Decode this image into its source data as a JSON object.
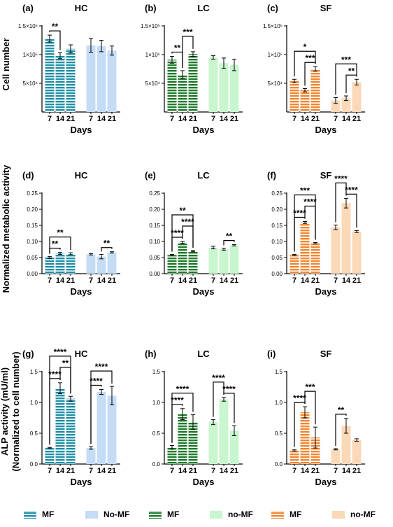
{
  "figure": {
    "ylabels": {
      "row0": "Cell number",
      "row1": "Normalized metabolic activity",
      "row2": "ALP activity (mU/ml)",
      "row2b": "(Normalized to cell number)"
    },
    "legend": [
      {
        "label": "MF",
        "color": "#1f8fa6",
        "pattern": "stripe"
      },
      {
        "label": "No-MF",
        "color": "#c5dcf5",
        "pattern": "solid"
      },
      {
        "label": "MF",
        "color": "#1e7a2a",
        "pattern": "stripe"
      },
      {
        "label": "no-MF",
        "color": "#c9f5cf",
        "pattern": "solid"
      },
      {
        "label": "MF",
        "color": "#f2852f",
        "pattern": "stripe"
      },
      {
        "label": "no-MF",
        "color": "#fbd9b8",
        "pattern": "solid"
      }
    ]
  },
  "chart_data": [
    {
      "type": "bar",
      "panel": "(a)",
      "title": "HC",
      "xlabel": "Days",
      "ylim": [
        0,
        150000
      ],
      "yticks": [
        {
          "v": 50000,
          "t": "5×10⁴"
        },
        {
          "v": 100000,
          "t": "1×10⁵"
        },
        {
          "v": 150000,
          "t": "1.5×10⁵"
        }
      ],
      "categories": [
        "7",
        "14",
        "21"
      ],
      "series": [
        {
          "name": "MF",
          "values": [
            128000,
            98000,
            110000
          ],
          "errors": [
            6000,
            5000,
            7000
          ]
        },
        {
          "name": "No-MF",
          "values": [
            116000,
            115000,
            107000
          ],
          "errors": [
            12000,
            10000,
            8000
          ]
        }
      ],
      "annotations": [
        {
          "series": 0,
          "from": 0,
          "to": 1,
          "label": "**",
          "level": 1
        }
      ]
    },
    {
      "type": "bar",
      "panel": "(b)",
      "title": "LC",
      "xlabel": "Days",
      "ylim": [
        0,
        150000
      ],
      "yticks": [
        {
          "v": 50000,
          "t": "5×10⁴"
        },
        {
          "v": 100000,
          "t": "1×10⁵"
        },
        {
          "v": 150000,
          "t": "1.5×10⁵"
        }
      ],
      "categories": [
        "7",
        "14",
        "21"
      ],
      "series": [
        {
          "name": "MF",
          "values": [
            91000,
            65000,
            101000
          ],
          "errors": [
            6000,
            7000,
            4000
          ]
        },
        {
          "name": "no-MF",
          "values": [
            95000,
            85000,
            82000
          ],
          "errors": [
            3000,
            9000,
            10000
          ]
        }
      ],
      "annotations": [
        {
          "series": 0,
          "from": 0,
          "to": 1,
          "label": "**",
          "level": 1
        },
        {
          "series": 0,
          "from": 1,
          "to": 2,
          "label": "***",
          "level": 2
        }
      ]
    },
    {
      "type": "bar",
      "panel": "(c)",
      "title": "SF",
      "xlabel": "Days",
      "ylim": [
        0,
        150000
      ],
      "yticks": [
        {
          "v": 50000,
          "t": "5×10⁴"
        },
        {
          "v": 100000,
          "t": "1×10⁵"
        },
        {
          "v": 150000,
          "t": "1.5×10⁵"
        }
      ],
      "categories": [
        "7",
        "14",
        "21"
      ],
      "series": [
        {
          "name": "MF",
          "values": [
            54000,
            38000,
            75000
          ],
          "errors": [
            3000,
            3000,
            4000
          ]
        },
        {
          "name": "no-MF",
          "values": [
            20000,
            24000,
            52000
          ],
          "errors": [
            5000,
            4000,
            5000
          ]
        }
      ],
      "annotations": [
        {
          "series": 0,
          "from": 0,
          "to": 2,
          "label": "*",
          "level": 2
        },
        {
          "series": 0,
          "from": 1,
          "to": 2,
          "label": "***",
          "level": 1
        },
        {
          "series": 1,
          "from": 0,
          "to": 2,
          "label": "***",
          "level": 2
        },
        {
          "series": 1,
          "from": 1,
          "to": 2,
          "label": "**",
          "level": 1
        }
      ]
    },
    {
      "type": "bar",
      "panel": "(d)",
      "title": "HC",
      "xlabel": "Days",
      "ylim": [
        0,
        0.25
      ],
      "yticks": [
        {
          "v": 0,
          "t": "0.00"
        },
        {
          "v": 0.05,
          "t": "0.05"
        },
        {
          "v": 0.1,
          "t": "0.10"
        },
        {
          "v": 0.15,
          "t": "0.15"
        },
        {
          "v": 0.2,
          "t": "0.20"
        },
        {
          "v": 0.25,
          "t": "0.25"
        }
      ],
      "categories": [
        "7",
        "14",
        "21"
      ],
      "series": [
        {
          "name": "MF",
          "values": [
            0.05,
            0.063,
            0.062
          ],
          "errors": [
            0.003,
            0.003,
            0.003
          ]
        },
        {
          "name": "No-MF",
          "values": [
            0.06,
            0.053,
            0.066
          ],
          "errors": [
            0.002,
            0.007,
            0.002
          ]
        }
      ],
      "annotations": [
        {
          "series": 0,
          "from": 0,
          "to": 1,
          "label": "**",
          "level": 1
        },
        {
          "series": 0,
          "from": 0,
          "to": 2,
          "label": "**",
          "level": 2
        },
        {
          "series": 1,
          "from": 1,
          "to": 2,
          "label": "**",
          "level": 1
        }
      ]
    },
    {
      "type": "bar",
      "panel": "(e)",
      "title": "LC",
      "xlabel": "Days",
      "ylim": [
        0,
        0.25
      ],
      "yticks": [
        {
          "v": 0,
          "t": "0.00"
        },
        {
          "v": 0.05,
          "t": "0.05"
        },
        {
          "v": 0.1,
          "t": "0.10"
        },
        {
          "v": 0.15,
          "t": "0.15"
        },
        {
          "v": 0.2,
          "t": "0.20"
        },
        {
          "v": 0.25,
          "t": "0.25"
        }
      ],
      "categories": [
        "7",
        "14",
        "21"
      ],
      "series": [
        {
          "name": "MF",
          "values": [
            0.058,
            0.097,
            0.07
          ],
          "errors": [
            0.002,
            0.003,
            0.002
          ]
        },
        {
          "name": "no-MF",
          "values": [
            0.081,
            0.076,
            0.088
          ],
          "errors": [
            0.004,
            0.003,
            0.002
          ]
        }
      ],
      "annotations": [
        {
          "series": 0,
          "from": 0,
          "to": 1,
          "label": "****",
          "level": 1
        },
        {
          "series": 0,
          "from": 1,
          "to": 2,
          "label": "****",
          "level": 2
        },
        {
          "series": 0,
          "from": 0,
          "to": 2,
          "label": "**",
          "level": 3
        },
        {
          "series": 1,
          "from": 1,
          "to": 2,
          "label": "**",
          "level": 1
        }
      ]
    },
    {
      "type": "bar",
      "panel": "(f)",
      "title": "SF",
      "xlabel": "Days",
      "ylim": [
        0,
        0.25
      ],
      "yticks": [
        {
          "v": 0,
          "t": "0.00"
        },
        {
          "v": 0.05,
          "t": "0.05"
        },
        {
          "v": 0.1,
          "t": "0.10"
        },
        {
          "v": 0.15,
          "t": "0.15"
        },
        {
          "v": 0.2,
          "t": "0.20"
        },
        {
          "v": 0.25,
          "t": "0.25"
        }
      ],
      "categories": [
        "7",
        "14",
        "21"
      ],
      "series": [
        {
          "name": "MF",
          "values": [
            0.058,
            0.159,
            0.095
          ],
          "errors": [
            0.002,
            0.003,
            0.002
          ]
        },
        {
          "name": "no-MF",
          "values": [
            0.144,
            0.219,
            0.131
          ],
          "errors": [
            0.007,
            0.015,
            0.003
          ]
        }
      ],
      "annotations": [
        {
          "series": 0,
          "from": 0,
          "to": 1,
          "label": "****",
          "level": 1
        },
        {
          "series": 0,
          "from": 1,
          "to": 2,
          "label": "****",
          "level": 2
        },
        {
          "series": 0,
          "from": 0,
          "to": 2,
          "label": "***",
          "level": 3
        },
        {
          "series": 1,
          "from": 0,
          "to": 1,
          "label": "****",
          "level": 2
        },
        {
          "series": 1,
          "from": 1,
          "to": 2,
          "label": "****",
          "level": 1
        }
      ]
    },
    {
      "type": "bar",
      "panel": "(g)",
      "title": "HC",
      "xlabel": "Days",
      "ylim": [
        0,
        1.5
      ],
      "yticks": [
        {
          "v": 0,
          "t": "0.0"
        },
        {
          "v": 0.5,
          "t": "0.5"
        },
        {
          "v": 1.0,
          "t": "1.0"
        },
        {
          "v": 1.5,
          "t": "1.5"
        }
      ],
      "categories": [
        "7",
        "14",
        "21"
      ],
      "series": [
        {
          "name": "MF",
          "values": [
            0.26,
            1.23,
            1.06
          ],
          "errors": [
            0.01,
            0.09,
            0.04
          ]
        },
        {
          "name": "No-MF",
          "values": [
            0.26,
            1.17,
            1.11
          ],
          "errors": [
            0.02,
            0.04,
            0.15
          ]
        }
      ],
      "annotations": [
        {
          "series": 0,
          "from": 0,
          "to": 1,
          "label": "****",
          "level": 1
        },
        {
          "series": 0,
          "from": 1,
          "to": 2,
          "label": "**",
          "level": 2
        },
        {
          "series": 0,
          "from": 0,
          "to": 2,
          "label": "****",
          "level": 3
        },
        {
          "series": 1,
          "from": 0,
          "to": 1,
          "label": "****",
          "level": 1
        },
        {
          "series": 1,
          "from": 0,
          "to": 2,
          "label": "****",
          "level": 2
        }
      ]
    },
    {
      "type": "bar",
      "panel": "(h)",
      "title": "LC",
      "xlabel": "Days",
      "ylim": [
        0,
        1.5
      ],
      "yticks": [
        {
          "v": 0,
          "t": "0.0"
        },
        {
          "v": 0.5,
          "t": "0.5"
        },
        {
          "v": 1.0,
          "t": "1.0"
        },
        {
          "v": 1.5,
          "t": "1.5"
        }
      ],
      "categories": [
        "7",
        "14",
        "21"
      ],
      "series": [
        {
          "name": "MF",
          "values": [
            0.27,
            0.81,
            0.68
          ],
          "errors": [
            0.03,
            0.09,
            0.12
          ]
        },
        {
          "name": "no-MF",
          "values": [
            0.68,
            1.05,
            0.54
          ],
          "errors": [
            0.04,
            0.03,
            0.08
          ]
        }
      ],
      "annotations": [
        {
          "series": 0,
          "from": 0,
          "to": 1,
          "label": "****",
          "level": 1
        },
        {
          "series": 0,
          "from": 0,
          "to": 2,
          "label": "****",
          "level": 2
        },
        {
          "series": 1,
          "from": 0,
          "to": 1,
          "label": "****",
          "level": 2
        },
        {
          "series": 1,
          "from": 1,
          "to": 2,
          "label": "****",
          "level": 1
        }
      ]
    },
    {
      "type": "bar",
      "panel": "(i)",
      "title": "SF",
      "xlabel": "Days",
      "ylim": [
        0,
        1.5
      ],
      "yticks": [
        {
          "v": 0,
          "t": "0.0"
        },
        {
          "v": 0.5,
          "t": "0.5"
        },
        {
          "v": 1.0,
          "t": "1.0"
        },
        {
          "v": 1.5,
          "t": "1.5"
        }
      ],
      "categories": [
        "7",
        "14",
        "21"
      ],
      "series": [
        {
          "name": "MF",
          "values": [
            0.22,
            0.84,
            0.43
          ],
          "errors": [
            0.01,
            0.09,
            0.17
          ]
        },
        {
          "name": "no-MF",
          "values": [
            0.24,
            0.62,
            0.39
          ],
          "errors": [
            0.01,
            0.12,
            0.02
          ]
        }
      ],
      "annotations": [
        {
          "series": 0,
          "from": 0,
          "to": 1,
          "label": "****",
          "level": 1
        },
        {
          "series": 0,
          "from": 1,
          "to": 2,
          "label": "***",
          "level": 2
        },
        {
          "series": 1,
          "from": 0,
          "to": 1,
          "label": "**",
          "level": 1
        }
      ]
    }
  ]
}
